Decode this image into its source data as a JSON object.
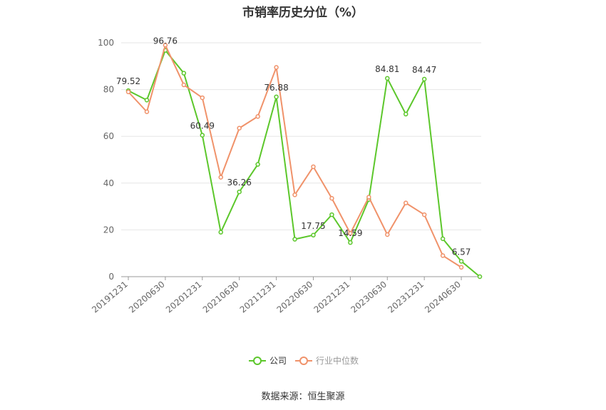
{
  "chart_data": {
    "type": "line",
    "title": "市销率历史分位（%）",
    "x": [
      "20191231",
      "20200331",
      "20200630",
      "20200930",
      "20201231",
      "20210331",
      "20210630",
      "20210930",
      "20211231",
      "20220331",
      "20220630",
      "20220930",
      "20221231",
      "20230331",
      "20230630",
      "20230930",
      "20231231",
      "20240331",
      "20240630",
      "20240930"
    ],
    "x_tick_labels": [
      "20191231",
      "20200630",
      "20201231",
      "20210630",
      "20211231",
      "20220630",
      "20221231",
      "20230630",
      "20231231",
      "20240630"
    ],
    "series": [
      {
        "name": "公司",
        "color": "#5cc72b",
        "values": [
          79.52,
          75.5,
          96.76,
          87.0,
          60.49,
          19.0,
          36.26,
          48.0,
          76.88,
          16.0,
          17.75,
          26.5,
          14.59,
          33.0,
          84.81,
          69.5,
          84.47,
          16.2,
          6.57,
          0.0
        ]
      },
      {
        "name": "行业中位数",
        "color": "#f0926a",
        "values": [
          79.0,
          70.5,
          99.0,
          82.0,
          76.5,
          42.5,
          63.5,
          68.5,
          89.5,
          35.0,
          47.0,
          33.5,
          18.5,
          34.0,
          18.0,
          31.5,
          26.5,
          9.0,
          4.0,
          null
        ]
      }
    ],
    "data_labels": [
      {
        "series": 0,
        "index": 0,
        "text": "79.52"
      },
      {
        "series": 0,
        "index": 2,
        "text": "96.76"
      },
      {
        "series": 0,
        "index": 4,
        "text": "60.49"
      },
      {
        "series": 0,
        "index": 6,
        "text": "36.26"
      },
      {
        "series": 0,
        "index": 8,
        "text": "76.88"
      },
      {
        "series": 0,
        "index": 10,
        "text": "17.75"
      },
      {
        "series": 0,
        "index": 12,
        "text": "14.59"
      },
      {
        "series": 0,
        "index": 14,
        "text": "84.81"
      },
      {
        "series": 0,
        "index": 16,
        "text": "84.47"
      },
      {
        "series": 0,
        "index": 18,
        "text": "6.57"
      }
    ],
    "y_ticks": [
      0,
      20,
      40,
      60,
      80,
      100
    ],
    "ylim": [
      0,
      100
    ],
    "grid": true,
    "legend_position": "bottom-center"
  },
  "source": "数据来源：恒生聚源"
}
